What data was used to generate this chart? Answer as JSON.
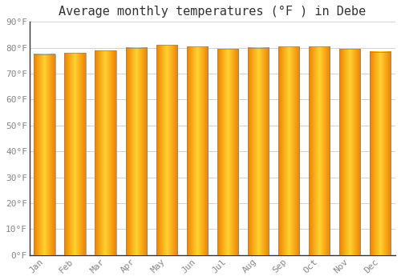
{
  "title": "Average monthly temperatures (°F ) in Debe",
  "months": [
    "Jan",
    "Feb",
    "Mar",
    "Apr",
    "May",
    "Jun",
    "Jul",
    "Aug",
    "Sep",
    "Oct",
    "Nov",
    "Dec"
  ],
  "values": [
    77.5,
    78.0,
    79.0,
    80.0,
    81.0,
    80.5,
    79.5,
    80.0,
    80.5,
    80.5,
    79.5,
    78.5
  ],
  "ylim": [
    0,
    90
  ],
  "yticks": [
    0,
    10,
    20,
    30,
    40,
    50,
    60,
    70,
    80,
    90
  ],
  "ytick_labels": [
    "0°F",
    "10°F",
    "20°F",
    "30°F",
    "40°F",
    "50°F",
    "60°F",
    "70°F",
    "80°F",
    "90°F"
  ],
  "background_color": "#FFFFFF",
  "grid_color": "#CCCCCC",
  "title_fontsize": 11,
  "tick_fontsize": 8,
  "bar_edge_color": "#888888",
  "bar_color_center": "#FFD040",
  "bar_color_edge": "#F08000",
  "bar_width": 0.7
}
